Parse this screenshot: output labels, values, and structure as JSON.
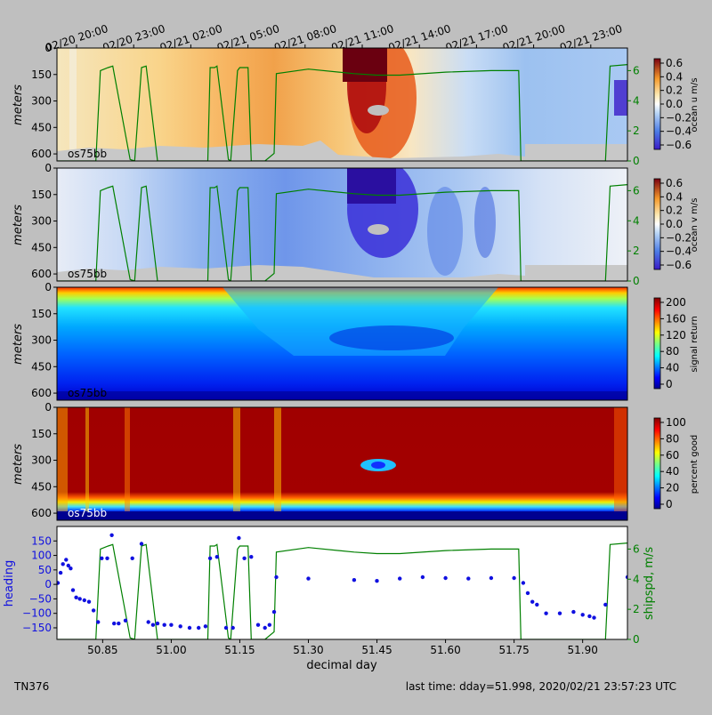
{
  "chart_data": [
    {
      "type": "heatmap",
      "cruise": "TN376",
      "instrument": "os75bb",
      "quantity": "ocean u m/s",
      "ylabel": "meters",
      "yticks": [
        0,
        150,
        300,
        450,
        600
      ],
      "ylim": [
        640,
        0
      ],
      "colorbar_label": "ocean u m/s",
      "colorbar_ticks": [
        "0.6",
        "0.4",
        "0.2",
        "0.0",
        "−0.2",
        "−0.4",
        "−0.6"
      ],
      "colormap": "blue-white-red",
      "right_axis_ticks": [
        "6",
        "4",
        "2",
        "0"
      ],
      "overlay": "ship speed (m/s)"
    },
    {
      "type": "heatmap",
      "instrument": "os75bb",
      "quantity": "ocean v m/s",
      "ylabel": "meters",
      "yticks": [
        0,
        150,
        300,
        450,
        600
      ],
      "colorbar_label": "ocean v m/s",
      "colorbar_ticks": [
        "0.6",
        "0.4",
        "0.2",
        "0.0",
        "−0.2",
        "−0.4",
        "−0.6"
      ],
      "colormap": "blue-white-red",
      "right_axis_ticks": [
        "6",
        "4",
        "2",
        "0"
      ],
      "overlay": "ship speed (m/s)"
    },
    {
      "type": "heatmap",
      "instrument": "os75bb",
      "quantity": "signal return",
      "ylabel": "meters",
      "yticks": [
        0,
        150,
        300,
        450,
        600
      ],
      "colorbar_label": "signal return",
      "colorbar_ticks": [
        "200",
        "160",
        "120",
        "80",
        "40",
        "0"
      ],
      "colormap": "jet"
    },
    {
      "type": "heatmap",
      "instrument": "os75bb",
      "quantity": "percent good",
      "ylabel": "meters",
      "yticks": [
        0,
        150,
        300,
        450,
        600
      ],
      "colorbar_label": "percent good",
      "colorbar_ticks": [
        "100",
        "80",
        "60",
        "40",
        "20",
        "0"
      ],
      "colormap": "jet"
    },
    {
      "type": "scatter",
      "ylabel": "heading",
      "y2label": "shipspd, m/s",
      "xlabel": "decimal day",
      "xticks": [
        "50.85",
        "51.00",
        "51.15",
        "51.30",
        "51.45",
        "51.60",
        "51.75",
        "51.90"
      ],
      "xlim": [
        50.75,
        51.998
      ],
      "ylim": [
        -190,
        200
      ],
      "yticks": [
        "150",
        "100",
        "50",
        "0",
        "−50",
        "−100",
        "−150"
      ],
      "y2ticks": [
        "6",
        "4",
        "2",
        "0"
      ],
      "y2lim": [
        0,
        7.5
      ],
      "heading_series": {
        "name": "heading",
        "color": "#1010e0",
        "x": [
          50.752,
          50.758,
          50.763,
          50.77,
          50.775,
          50.78,
          50.785,
          50.792,
          50.8,
          50.81,
          50.82,
          50.83,
          50.84,
          50.848,
          50.86,
          50.87,
          50.875,
          50.885,
          50.9,
          50.915,
          50.935,
          50.95,
          50.96,
          50.97,
          50.985,
          51.0,
          51.02,
          51.04,
          51.06,
          51.075,
          51.085,
          51.1,
          51.12,
          51.135,
          51.148,
          51.16,
          51.175,
          51.19,
          51.205,
          51.215,
          51.225,
          51.23,
          51.3,
          51.4,
          51.45,
          51.5,
          51.55,
          51.6,
          51.65,
          51.7,
          51.75,
          51.77,
          51.78,
          51.79,
          51.8,
          51.82,
          51.85,
          51.88,
          51.9,
          51.915,
          51.925,
          51.95,
          51.998
        ],
        "y": [
          5,
          40,
          70,
          85,
          65,
          55,
          -20,
          -45,
          -50,
          -55,
          -60,
          -90,
          -130,
          90,
          90,
          170,
          -135,
          -135,
          -125,
          90,
          140,
          -130,
          -140,
          -135,
          -140,
          -140,
          -145,
          -150,
          -150,
          -145,
          90,
          95,
          -150,
          -150,
          160,
          90,
          95,
          -140,
          -150,
          -140,
          -95,
          25,
          20,
          15,
          12,
          20,
          25,
          22,
          20,
          22,
          22,
          5,
          -30,
          -60,
          -70,
          -100,
          -100,
          -95,
          -105,
          -110,
          -115,
          -70,
          25
        ]
      },
      "speed_series": {
        "name": "shipspd, m/s",
        "color": "#008000",
        "x": [
          50.752,
          50.8,
          50.835,
          50.845,
          50.862,
          50.872,
          50.91,
          50.92,
          50.935,
          50.945,
          50.97,
          51.05,
          51.08,
          51.085,
          51.095,
          51.1,
          51.125,
          51.13,
          51.145,
          51.15,
          51.168,
          51.175,
          51.205,
          51.225,
          51.23,
          51.3,
          51.4,
          51.45,
          51.5,
          51.6,
          51.7,
          51.76,
          51.765,
          51.8,
          51.9,
          51.95,
          51.96,
          51.998
        ],
        "y": [
          0,
          0,
          0,
          6,
          6.2,
          6.3,
          0.1,
          0,
          6.2,
          6.3,
          0,
          0,
          0,
          6.2,
          6.2,
          6.3,
          0.1,
          0,
          6,
          6.2,
          6.2,
          0,
          0,
          0.5,
          5.8,
          6.1,
          5.8,
          5.7,
          5.7,
          5.9,
          6.0,
          6.0,
          0,
          0,
          0,
          0,
          6.3,
          6.4
        ]
      }
    }
  ],
  "time_axis_labels": [
    "02/20 20:00",
    "02/20 23:00",
    "02/21 02:00",
    "02/21 05:00",
    "02/21 08:00",
    "02/21 11:00",
    "02/21 14:00",
    "02/21 17:00",
    "02/21 20:00",
    "02/21 23:00"
  ],
  "footer": {
    "left": "TN376",
    "right": "last time: dday=51.998,  2020/02/21 23:57:23 UTC"
  }
}
